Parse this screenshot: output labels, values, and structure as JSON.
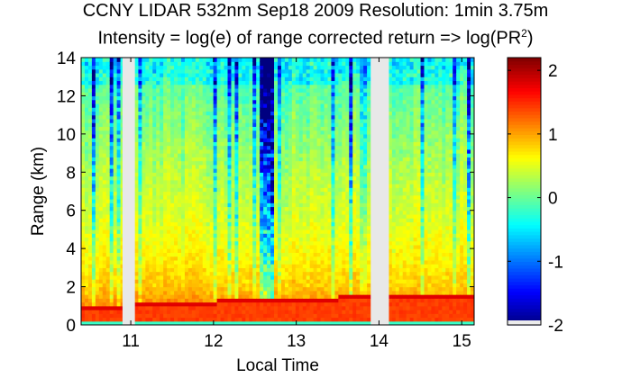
{
  "chart_data": {
    "type": "heatmap",
    "title": "CCNY LIDAR 532nm Sep18 2009 Resolution: 1min 3.75m",
    "subtitle_prefix": "Intensity = log(e) of range corrected return => log(PR",
    "subtitle_superscript": "2",
    "subtitle_suffix": ")",
    "xlabel": "Local Time",
    "ylabel": "Range (km)",
    "xlim": [
      10.4,
      15.15
    ],
    "ylim": [
      0,
      14
    ],
    "xticks": [
      "11",
      "12",
      "13",
      "14",
      "15"
    ],
    "xtick_values": [
      11,
      12,
      13,
      14,
      15
    ],
    "yticks": [
      "0",
      "2",
      "4",
      "6",
      "8",
      "10",
      "12",
      "14"
    ],
    "ytick_values": [
      0,
      2,
      4,
      6,
      8,
      10,
      12,
      14
    ],
    "colorbar": {
      "colormap": "jet",
      "range": [
        -2,
        2.2
      ],
      "ticks": [
        "-2",
        "-1",
        "0",
        "1",
        "2"
      ],
      "tick_values": [
        -2,
        -1,
        0,
        1,
        2
      ]
    },
    "missing_data_gaps": [
      [
        10.9,
        11.05
      ],
      [
        13.9,
        14.12
      ]
    ],
    "boundary_layer_top_km": [
      {
        "time": 10.4,
        "km": 0.7
      },
      {
        "time": 11.0,
        "km": 0.9
      },
      {
        "time": 11.6,
        "km": 0.95
      },
      {
        "time": 12.3,
        "km": 1.2
      },
      {
        "time": 13.0,
        "km": 1.25
      },
      {
        "time": 13.5,
        "km": 1.3
      },
      {
        "time": 14.0,
        "km": 1.35
      },
      {
        "time": 15.15,
        "km": 1.4
      }
    ],
    "approx_intensity_by_range": [
      {
        "km": 0.3,
        "value": 1.4
      },
      {
        "km": 1.0,
        "value": 1.2
      },
      {
        "km": 2.0,
        "value": 0.9
      },
      {
        "km": 4.0,
        "value": 0.7
      },
      {
        "km": 6.0,
        "value": 0.55
      },
      {
        "km": 8.0,
        "value": 0.45
      },
      {
        "km": 10.0,
        "value": 0.3
      },
      {
        "km": 12.0,
        "value": 0.15
      },
      {
        "km": 14.0,
        "value": 0.0
      }
    ],
    "colors": {
      "gap": "#e8e8e8",
      "axis": "#000000"
    }
  }
}
